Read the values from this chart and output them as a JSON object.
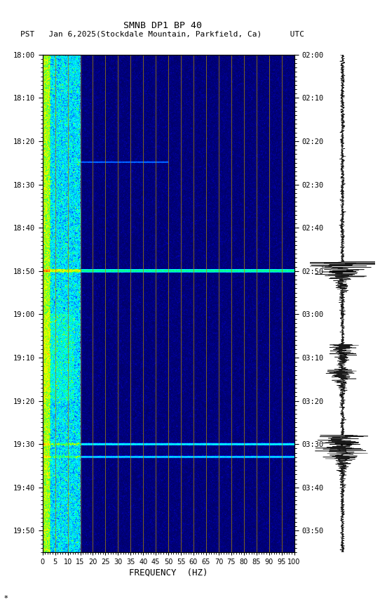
{
  "title1": "SMNB DP1 BP 40",
  "title2": "PST   Jan 6,2025(Stockdale Mountain, Parkfield, Ca)      UTC",
  "xlabel": "FREQUENCY  (HZ)",
  "freq_ticks": [
    0,
    5,
    10,
    15,
    20,
    25,
    30,
    35,
    40,
    45,
    50,
    55,
    60,
    65,
    70,
    75,
    80,
    85,
    90,
    95,
    100
  ],
  "freq_gridlines": [
    5,
    10,
    15,
    20,
    25,
    30,
    35,
    40,
    45,
    50,
    55,
    60,
    65,
    70,
    75,
    80,
    85,
    90,
    95,
    100
  ],
  "time_start_pst": "18:00",
  "time_end_pst": "19:55",
  "time_start_utc": "02:00",
  "time_end_utc": "03:55",
  "pst_ticks": [
    "18:00",
    "18:10",
    "18:20",
    "18:30",
    "18:40",
    "18:50",
    "19:00",
    "19:10",
    "19:20",
    "19:30",
    "19:40",
    "19:50"
  ],
  "utc_ticks": [
    "02:00",
    "02:10",
    "02:20",
    "02:30",
    "02:40",
    "02:50",
    "03:00",
    "03:10",
    "03:20",
    "03:30",
    "03:40",
    "03:50"
  ],
  "bg_color": "#ffffff",
  "spectrogram_bg": "#0000aa",
  "low_freq_red": "#cc0000",
  "seismic_waveform_color": "#000000",
  "vertical_gridline_color": "#aa8800",
  "horizontal_gridline_color": "#aa8800",
  "colormap_colors": [
    "#000080",
    "#0000ff",
    "#0080ff",
    "#00ffff",
    "#00ff80",
    "#80ff00",
    "#ffff00",
    "#ff8000",
    "#ff0000",
    "#800000"
  ],
  "figsize": [
    5.52,
    8.64
  ],
  "dpi": 100
}
